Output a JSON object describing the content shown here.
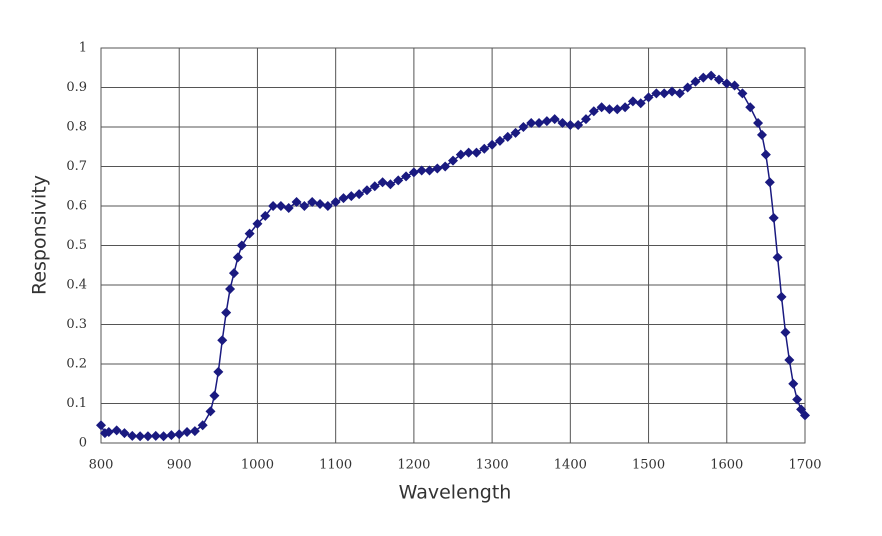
{
  "chart_data": {
    "type": "line",
    "xlabel": "Wavelength",
    "ylabel": "Responsivity",
    "x": [
      800,
      805,
      810,
      820,
      830,
      840,
      850,
      860,
      870,
      880,
      890,
      900,
      910,
      920,
      930,
      940,
      945,
      950,
      955,
      960,
      965,
      970,
      975,
      980,
      990,
      1000,
      1010,
      1020,
      1030,
      1040,
      1050,
      1060,
      1070,
      1080,
      1090,
      1100,
      1110,
      1120,
      1130,
      1140,
      1150,
      1160,
      1170,
      1180,
      1190,
      1200,
      1210,
      1220,
      1230,
      1240,
      1250,
      1260,
      1270,
      1280,
      1290,
      1300,
      1310,
      1320,
      1330,
      1340,
      1350,
      1360,
      1370,
      1380,
      1390,
      1400,
      1410,
      1420,
      1430,
      1440,
      1450,
      1460,
      1470,
      1480,
      1490,
      1500,
      1510,
      1520,
      1530,
      1540,
      1550,
      1560,
      1570,
      1580,
      1590,
      1600,
      1610,
      1620,
      1630,
      1640,
      1645,
      1650,
      1655,
      1660,
      1665,
      1670,
      1675,
      1680,
      1685,
      1690,
      1695,
      1700
    ],
    "series": [
      {
        "name": "Responsivity",
        "color": "#1a1a80",
        "values": [
          0.045,
          0.025,
          0.028,
          0.032,
          0.025,
          0.018,
          0.017,
          0.017,
          0.018,
          0.017,
          0.02,
          0.022,
          0.028,
          0.03,
          0.045,
          0.08,
          0.12,
          0.18,
          0.26,
          0.33,
          0.39,
          0.43,
          0.47,
          0.5,
          0.53,
          0.555,
          0.575,
          0.6,
          0.6,
          0.595,
          0.61,
          0.6,
          0.61,
          0.605,
          0.6,
          0.61,
          0.62,
          0.625,
          0.63,
          0.64,
          0.65,
          0.66,
          0.655,
          0.665,
          0.675,
          0.685,
          0.69,
          0.69,
          0.695,
          0.7,
          0.715,
          0.73,
          0.735,
          0.735,
          0.745,
          0.755,
          0.765,
          0.775,
          0.785,
          0.8,
          0.81,
          0.81,
          0.815,
          0.82,
          0.81,
          0.805,
          0.805,
          0.82,
          0.84,
          0.85,
          0.845,
          0.845,
          0.85,
          0.865,
          0.86,
          0.875,
          0.885,
          0.885,
          0.89,
          0.885,
          0.9,
          0.915,
          0.925,
          0.93,
          0.92,
          0.91,
          0.905,
          0.885,
          0.85,
          0.81,
          0.78,
          0.73,
          0.66,
          0.57,
          0.47,
          0.37,
          0.28,
          0.21,
          0.15,
          0.11,
          0.085,
          0.07
        ]
      }
    ],
    "xlim": [
      800,
      1700
    ],
    "xticks": [
      800,
      900,
      1000,
      1100,
      1200,
      1300,
      1400,
      1500,
      1600,
      1700
    ],
    "ylim": [
      0,
      1
    ],
    "yticks": [
      0,
      0.1,
      0.2,
      0.3,
      0.4,
      0.5,
      0.6,
      0.7,
      0.8,
      0.9,
      1
    ],
    "grid": true
  }
}
